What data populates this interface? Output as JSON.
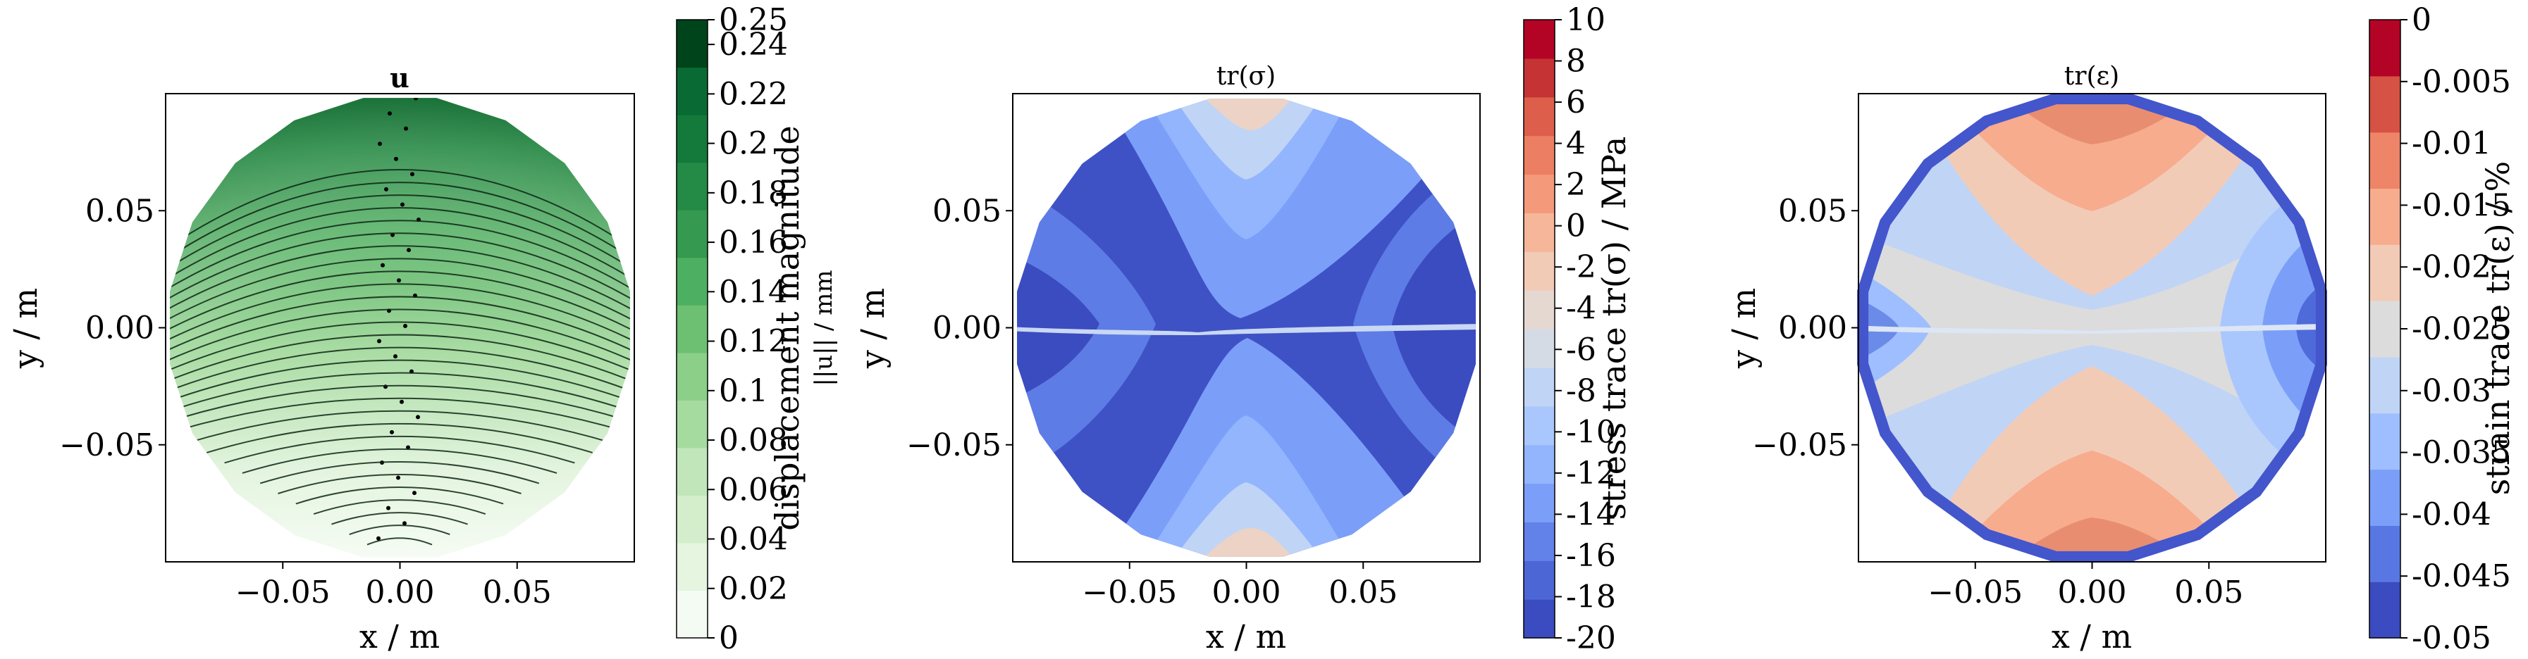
{
  "chart_data": [
    {
      "type": "heatmap",
      "title": "u",
      "xlabel": "x / m",
      "ylabel": "y / m",
      "x_ticks": [
        "−0.05",
        "0.00",
        "0.05"
      ],
      "y_ticks": [
        "0.05",
        "0.00",
        "−0.05"
      ],
      "xlim": [
        -0.1,
        0.1
      ],
      "ylim": [
        -0.1,
        0.1
      ],
      "colorbar": {
        "label_line1": "displacement magnitude",
        "label_line2": "||u|| / mm",
        "ticks": [
          "0",
          "0.02",
          "0.04",
          "0.06",
          "0.08",
          "0.1",
          "0.12",
          "0.14",
          "0.16",
          "0.18",
          "0.2",
          "0.22",
          "0.24",
          "0.25"
        ],
        "range": [
          0,
          0.25
        ],
        "colormap": "Greens",
        "colors": [
          "#f4fbf2",
          "#e5f5e0",
          "#d4eecc",
          "#c0e6b9",
          "#a6dba0",
          "#8bcf88",
          "#6dbf71",
          "#4daf62",
          "#35994f",
          "#238b45",
          "#137a3b",
          "#0a6a33",
          "#00441b"
        ]
      },
      "field": "displacement magnitude increasing from bottom (0) to top (0.25), overlaid with streamlines"
    },
    {
      "type": "heatmap",
      "title": "tr(σ)",
      "xlabel": "x / m",
      "ylabel": "y / m",
      "x_ticks": [
        "−0.05",
        "0.00",
        "0.05"
      ],
      "y_ticks": [
        "0.05",
        "0.00",
        "−0.05"
      ],
      "xlim": [
        -0.1,
        0.1
      ],
      "ylim": [
        -0.1,
        0.1
      ],
      "colorbar": {
        "label": "stress trace tr(σ) / MPa",
        "ticks": [
          "-20",
          "-18",
          "-16",
          "-14",
          "-12",
          "-10",
          "-8",
          "-6",
          "-4",
          "-2",
          "0",
          "2",
          "4",
          "6",
          "8",
          "10"
        ],
        "range": [
          -20,
          10
        ],
        "colormap": "coolwarm",
        "colors": [
          "#3b4cc0",
          "#4c66d6",
          "#6282ea",
          "#7b9ff9",
          "#93b5fe",
          "#aac7fd",
          "#c0d4f5",
          "#d5dbe5",
          "#e5d8d1",
          "#f2cbb7",
          "#f6b69a",
          "#f49a7b",
          "#ec7f63",
          "#dd5f4b",
          "#c53334",
          "#b40426"
        ]
      }
    },
    {
      "type": "heatmap",
      "title": "tr(ε)",
      "xlabel": "x / m",
      "ylabel": "y / m",
      "x_ticks": [
        "−0.05",
        "0.00",
        "0.05"
      ],
      "y_ticks": [
        "0.05",
        "0.00",
        "−0.05"
      ],
      "xlim": [
        -0.1,
        0.1
      ],
      "ylim": [
        -0.1,
        0.1
      ],
      "colorbar": {
        "label": "strain trace tr(ε) / %",
        "ticks": [
          "-0.05",
          "-0.045",
          "-0.04",
          "-0.035",
          "-0.03",
          "-0.025",
          "-0.02",
          "-0.015",
          "-0.01",
          "-0.005",
          "0"
        ],
        "range": [
          -0.05,
          0
        ],
        "colormap": "coolwarm",
        "colors": [
          "#3b4cc0",
          "#5977e3",
          "#7b9ff9",
          "#9ebeff",
          "#c0d4f5",
          "#dddcdc",
          "#f2cbb7",
          "#f7ac8e",
          "#ee8468",
          "#d65244",
          "#b40426"
        ]
      }
    }
  ]
}
